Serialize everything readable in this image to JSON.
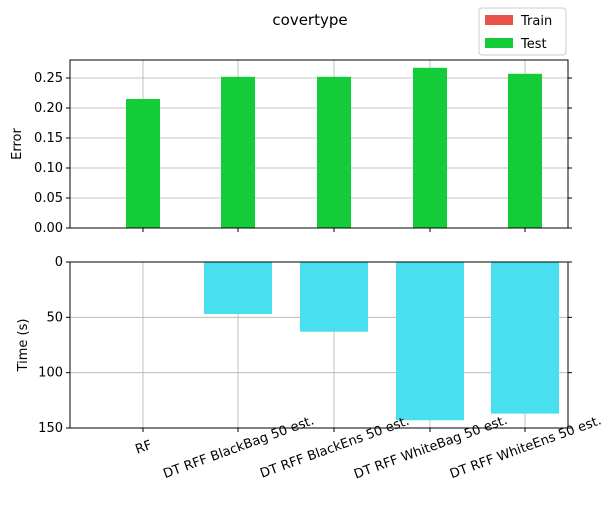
{
  "chart_data": [
    {
      "type": "bar",
      "title": "covertype",
      "ylabel": "Error",
      "xlabel": "",
      "categories": [
        "RF",
        "DT RFF BlackBag 50 est.",
        "DT RFF BlackEns 50 est.",
        "DT RFF WhiteBag 50 est.",
        "DT RFF WhiteEns 50 est."
      ],
      "series": [
        {
          "name": "Train",
          "values": [
            0,
            0,
            0,
            0,
            0
          ],
          "color": "#e8524a"
        },
        {
          "name": "Test",
          "values": [
            0.215,
            0.252,
            0.252,
            0.267,
            0.257
          ],
          "color": "#13cc38"
        }
      ],
      "ylim": [
        0,
        0.28
      ],
      "yticks": [
        "0.00",
        "0.05",
        "0.10",
        "0.15",
        "0.20",
        "0.25"
      ],
      "grid": true,
      "legend_placement": "top-right"
    },
    {
      "type": "bar",
      "ylabel": "Time (s)",
      "xlabel": "",
      "categories": [
        "RF",
        "DT RFF BlackBag 50 est.",
        "DT RFF BlackEns 50 est.",
        "DT RFF WhiteBag 50 est.",
        "DT RFF WhiteEns 50 est."
      ],
      "values": [
        0,
        47,
        63,
        143,
        137
      ],
      "color": "#48e0ee",
      "ylim": [
        0,
        150
      ],
      "y_inverted": true,
      "yticks": [
        "0",
        "50",
        "100",
        "150"
      ],
      "grid": true
    }
  ]
}
